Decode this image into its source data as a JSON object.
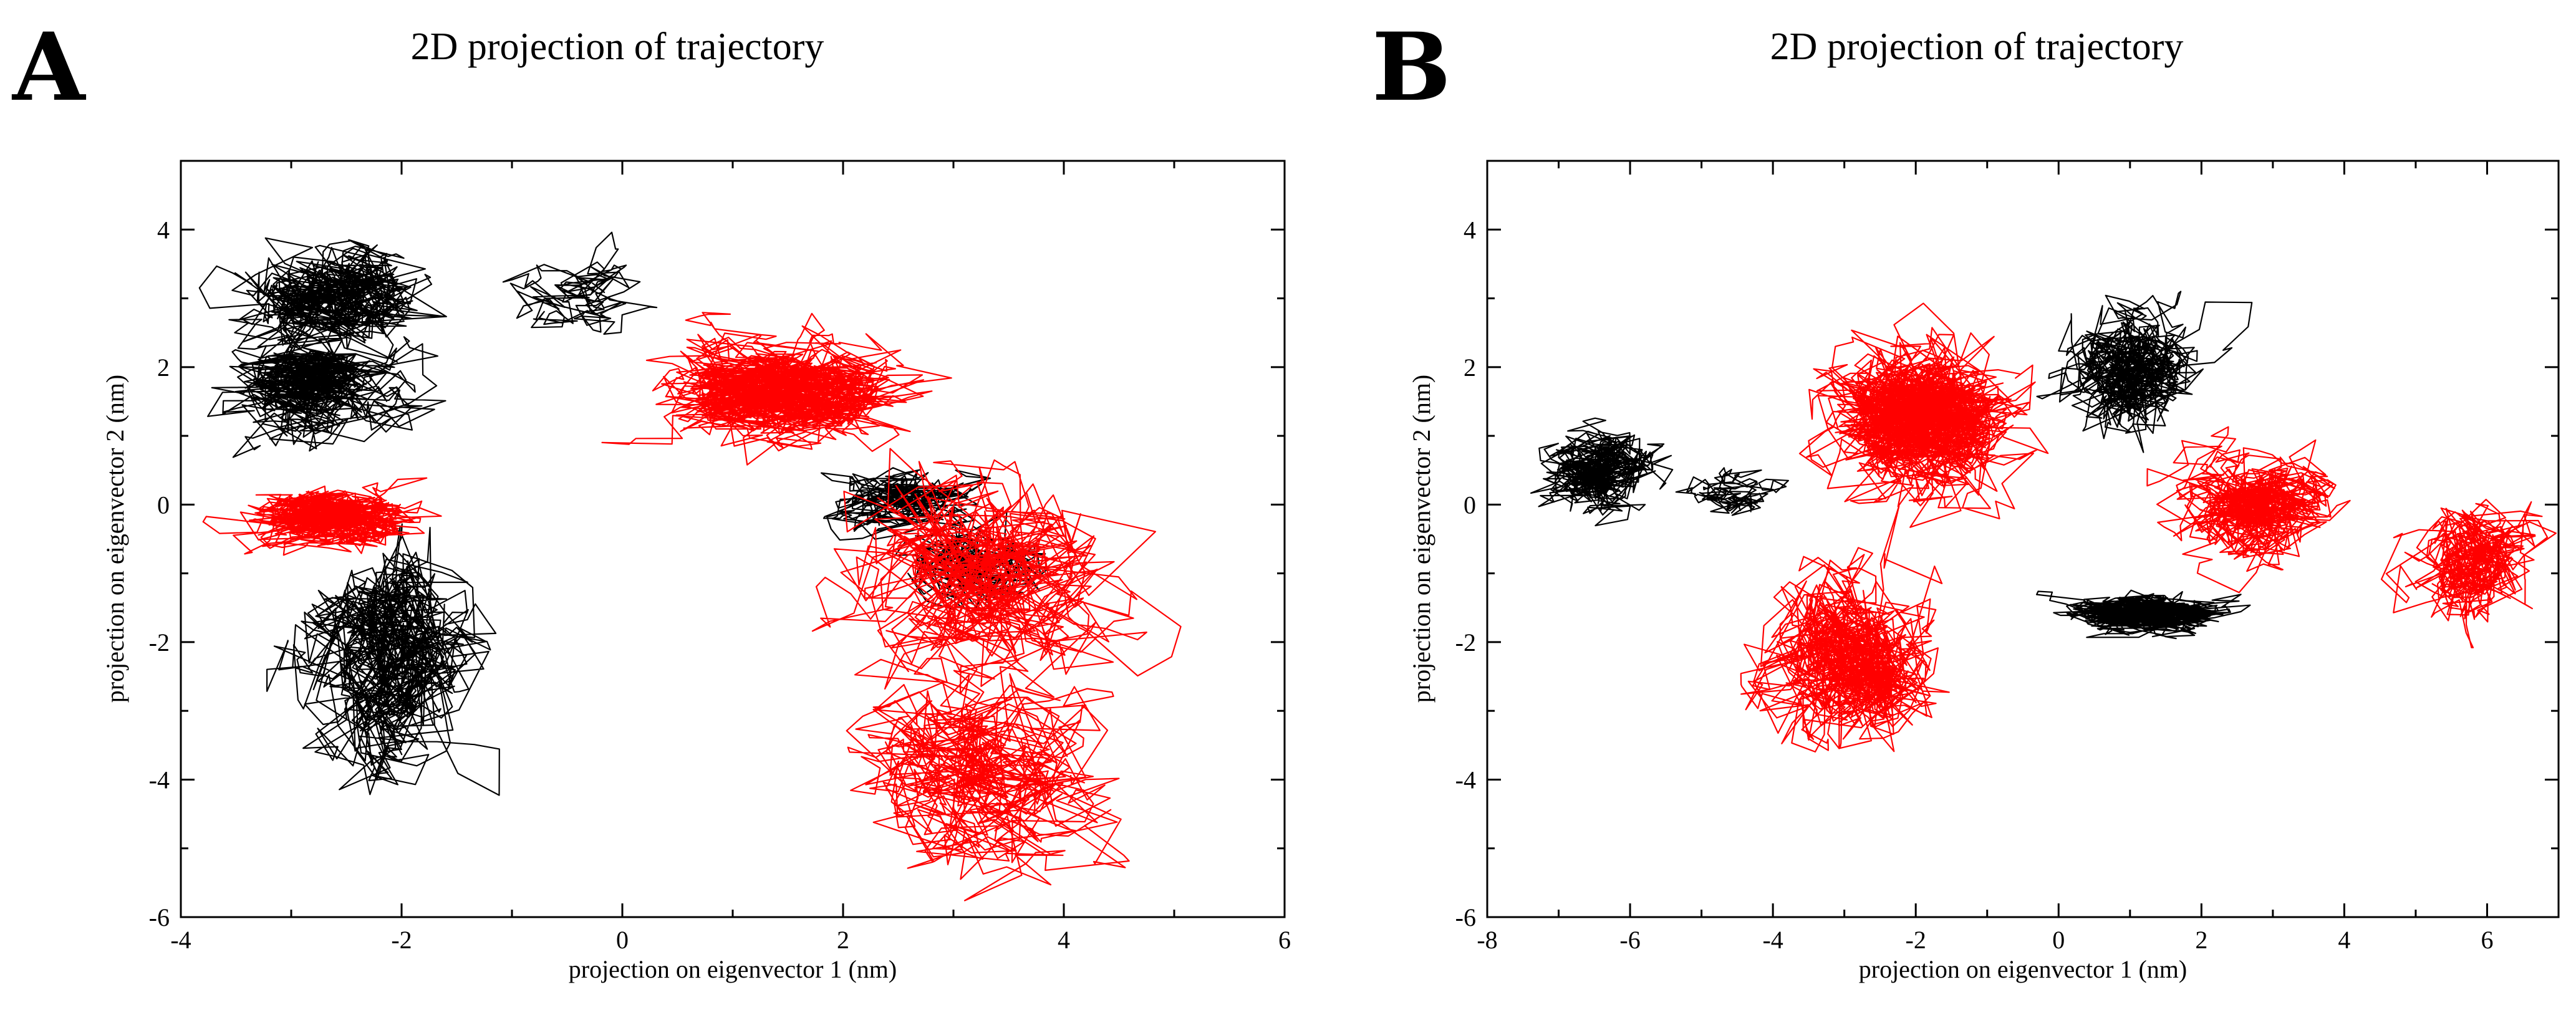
{
  "chart_data": [
    {
      "panel": "A",
      "type": "line",
      "title": "2D projection of trajectory",
      "xlabel": "projection on eigenvector 1 (nm)",
      "ylabel": "projection on eigenvector 2 (nm)",
      "xlim": [
        -4,
        6
      ],
      "ylim": [
        -6,
        5
      ],
      "xticks": [
        -4,
        -2,
        0,
        2,
        4,
        6
      ],
      "yticks": [
        -6,
        -4,
        -2,
        0,
        2,
        4
      ],
      "series": [
        {
          "name": "black trajectory",
          "color": "#000000",
          "clusters": [
            {
              "cx": -2.6,
              "cy": 3.0,
              "sx": 0.55,
              "sy": 0.6,
              "n": 700,
              "step": 0.35
            },
            {
              "cx": -2.8,
              "cy": 1.7,
              "sx": 0.55,
              "sy": 0.5,
              "n": 700,
              "step": 0.35
            },
            {
              "cx": -2.1,
              "cy": -2.2,
              "sx": 0.35,
              "sy": 0.65,
              "n": 800,
              "step": 0.35
            },
            {
              "cx": -0.3,
              "cy": 3.0,
              "sx": 0.35,
              "sy": 0.3,
              "n": 150,
              "step": 0.3
            },
            {
              "cx": 2.5,
              "cy": 0.1,
              "sx": 0.5,
              "sy": 0.35,
              "n": 350,
              "step": 0.3
            },
            {
              "cx": 3.3,
              "cy": -0.8,
              "sx": 0.35,
              "sy": 0.35,
              "n": 250,
              "step": 0.3
            }
          ]
        },
        {
          "name": "red trajectory",
          "color": "#ff0000",
          "clusters": [
            {
              "cx": -2.6,
              "cy": -0.2,
              "sx": 0.55,
              "sy": 0.35,
              "n": 900,
              "step": 0.3
            },
            {
              "cx": 1.5,
              "cy": 1.6,
              "sx": 1.1,
              "sy": 0.8,
              "n": 1300,
              "step": 0.45
            },
            {
              "cx": 3.3,
              "cy": -1.2,
              "sx": 0.55,
              "sy": 0.7,
              "n": 700,
              "step": 0.5
            },
            {
              "cx": 3.2,
              "cy": -4.0,
              "sx": 0.45,
              "sy": 0.55,
              "n": 600,
              "step": 0.5
            }
          ]
        }
      ]
    },
    {
      "panel": "B",
      "type": "line",
      "title": "2D projection of trajectory",
      "xlabel": "projection on eigenvector 1 (nm)",
      "ylabel": "projection on eigenvector 2 (nm)",
      "xlim": [
        -8,
        7
      ],
      "ylim": [
        -6,
        5
      ],
      "xticks": [
        -8,
        -6,
        -4,
        -2,
        0,
        2,
        4,
        6
      ],
      "yticks": [
        -6,
        -4,
        -2,
        0,
        2,
        4
      ],
      "series": [
        {
          "name": "black trajectory",
          "color": "#000000",
          "clusters": [
            {
              "cx": -6.4,
              "cy": 0.5,
              "sx": 0.55,
              "sy": 0.4,
              "n": 600,
              "step": 0.35
            },
            {
              "cx": 1.0,
              "cy": 2.0,
              "sx": 0.7,
              "sy": 0.65,
              "n": 700,
              "step": 0.4
            },
            {
              "cx": 1.2,
              "cy": -1.6,
              "sx": 1.0,
              "sy": 0.25,
              "n": 900,
              "step": 0.45
            },
            {
              "cx": -4.6,
              "cy": 0.2,
              "sx": 0.45,
              "sy": 0.25,
              "n": 150,
              "step": 0.3
            }
          ]
        },
        {
          "name": "red trajectory",
          "color": "#ff0000",
          "clusters": [
            {
              "cx": -2.0,
              "cy": 1.2,
              "sx": 1.2,
              "sy": 1.0,
              "n": 1500,
              "step": 0.55
            },
            {
              "cx": -3.0,
              "cy": -2.2,
              "sx": 0.75,
              "sy": 0.9,
              "n": 900,
              "step": 0.5
            },
            {
              "cx": 2.8,
              "cy": 0.0,
              "sx": 0.8,
              "sy": 0.6,
              "n": 800,
              "step": 0.45
            },
            {
              "cx": 5.8,
              "cy": -0.8,
              "sx": 0.4,
              "sy": 0.4,
              "n": 500,
              "step": 0.4
            }
          ]
        }
      ]
    }
  ]
}
